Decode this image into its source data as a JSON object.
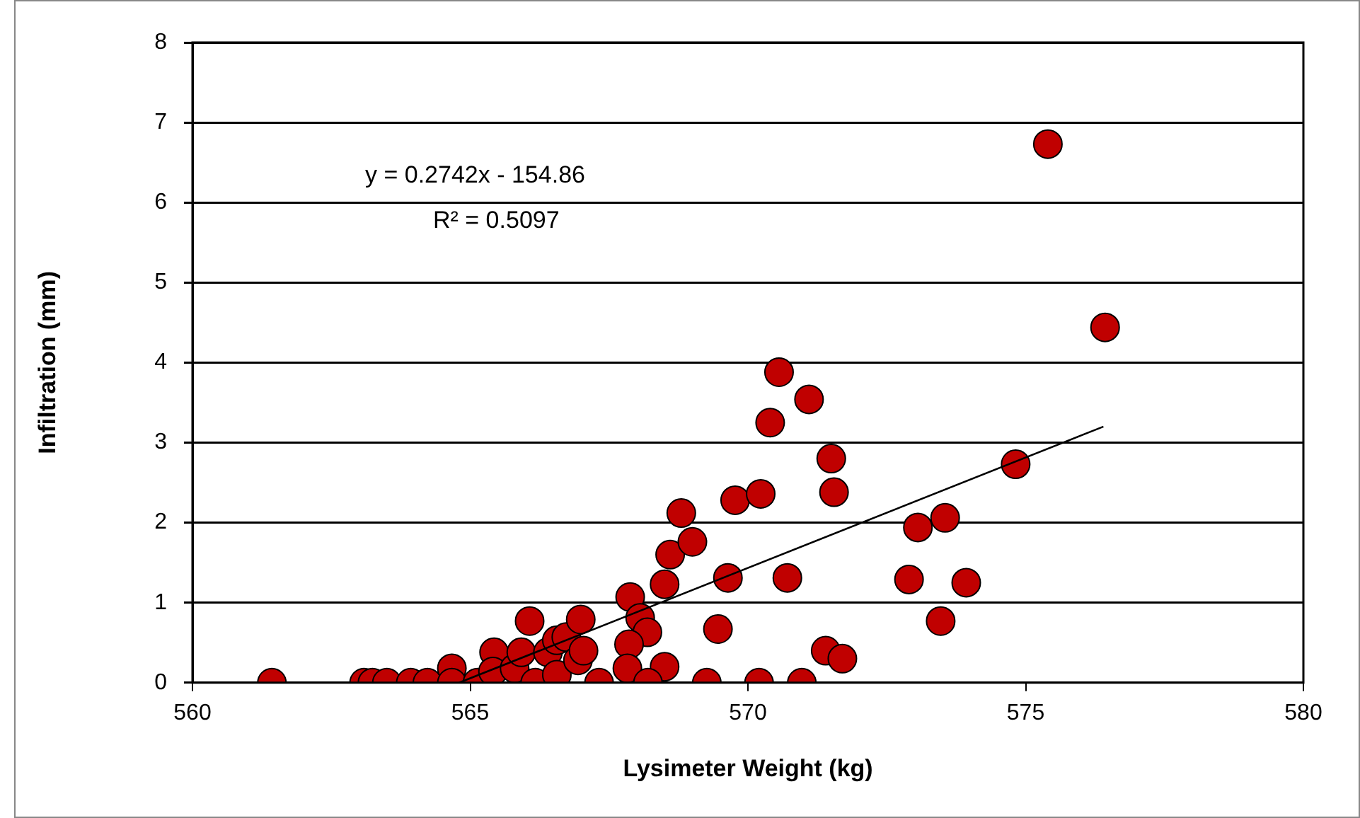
{
  "chart_data": {
    "type": "scatter",
    "xlabel": "Lysimeter Weight (kg)",
    "ylabel": "Infiltration (mm)",
    "xlim": [
      560,
      580
    ],
    "xticks": [
      560,
      565,
      570,
      575,
      580
    ],
    "ylim": [
      0,
      8
    ],
    "yticks": [
      0,
      1,
      2,
      3,
      4,
      5,
      6,
      7,
      8
    ],
    "grid": "y",
    "legend": false,
    "marker": "circle",
    "annotations": [
      "y = 0.2742x - 154.86",
      "R² = 0.5097"
    ],
    "series": [
      {
        "color": "#c00000",
        "x": [
          561.43,
          563.09,
          563.24,
          563.5,
          563.93,
          564.23,
          564.67,
          564.67,
          565.13,
          565.43,
          565.41,
          565.8,
          566.07,
          566.17,
          565.92,
          566.4,
          566.56,
          566.56,
          566.73,
          566.99,
          566.94,
          567.04,
          567.32,
          567.88,
          568.06,
          568.19,
          567.86,
          567.83,
          568.5,
          568.2,
          568.5,
          568.6,
          568.8,
          569.0,
          569.26,
          569.46,
          569.64,
          569.77,
          570.2,
          570.23,
          570.4,
          570.56,
          570.71,
          570.97,
          571.1,
          571.4,
          571.5,
          571.55,
          571.7,
          572.9,
          573.06,
          573.47,
          573.55,
          573.93,
          574.82,
          575.4,
          576.43
        ],
        "values": [
          0,
          0,
          0,
          0,
          0,
          0,
          0.18,
          0,
          0,
          0.38,
          0.14,
          0.18,
          0.77,
          0,
          0.38,
          0.38,
          0.53,
          0.1,
          0.57,
          0.79,
          0.28,
          0.4,
          0,
          1.07,
          0.81,
          0.63,
          0.48,
          0.18,
          0.2,
          0,
          1.23,
          1.6,
          2.12,
          1.76,
          0,
          0.67,
          1.31,
          2.28,
          0,
          2.36,
          3.25,
          3.88,
          1.31,
          0,
          3.54,
          0.4,
          2.8,
          2.38,
          0.3,
          1.29,
          1.94,
          0.77,
          2.06,
          1.25,
          2.73,
          6.73,
          4.44
        ]
      },
      {
        "type": "line",
        "marker": "none",
        "color": "#000000",
        "x": [
          564.8,
          576.4
        ],
        "values": [
          0,
          3.2
        ]
      }
    ]
  }
}
